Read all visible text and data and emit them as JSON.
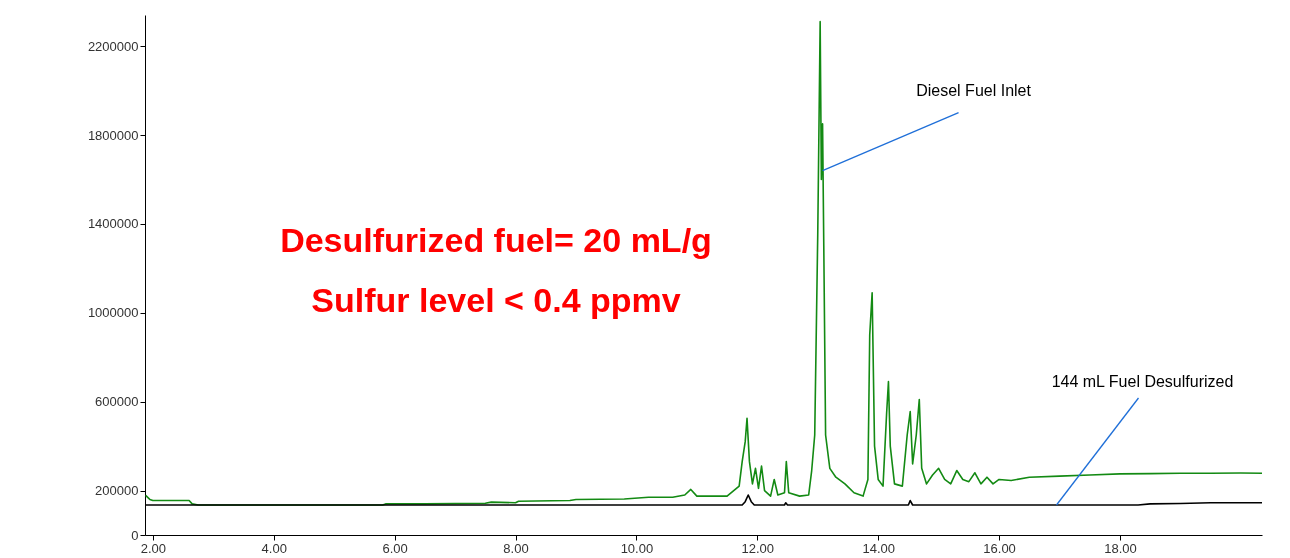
{
  "chart_data": {
    "type": "line",
    "xlim": [
      1.87,
      20.35
    ],
    "xticks": [
      {
        "value": 2,
        "label": "2.00"
      },
      {
        "value": 4,
        "label": "4.00"
      },
      {
        "value": 6,
        "label": "6.00"
      },
      {
        "value": 8,
        "label": "8.00"
      },
      {
        "value": 10,
        "label": "10.00"
      },
      {
        "value": 12,
        "label": "12.00"
      },
      {
        "value": 14,
        "label": "14.00"
      },
      {
        "value": 16,
        "label": "16.00"
      },
      {
        "value": 18,
        "label": "18.00"
      }
    ],
    "ylim": [
      0,
      2340000
    ],
    "yticks": [
      0,
      200000,
      600000,
      1000000,
      1400000,
      1800000,
      2200000
    ],
    "grid": false,
    "marker": "none",
    "line_style": "solid",
    "series": [
      {
        "color": "#138a13",
        "x": [
          1.88,
          1.95,
          2.0,
          2.6,
          2.65,
          2.75,
          5.8,
          5.85,
          6.5,
          7.5,
          7.6,
          8.0,
          8.05,
          8.9,
          9.0,
          9.8,
          10.2,
          10.6,
          10.8,
          10.9,
          11.0,
          11.5,
          11.7,
          11.75,
          11.8,
          11.83,
          11.87,
          11.92,
          11.97,
          12.02,
          12.07,
          12.12,
          12.22,
          12.28,
          12.34,
          12.45,
          12.48,
          12.52,
          12.7,
          12.85,
          12.9,
          12.95,
          13.0,
          13.04,
          13.06,
          13.08,
          13.1,
          13.13,
          13.2,
          13.3,
          13.45,
          13.6,
          13.75,
          13.83,
          13.86,
          13.9,
          13.94,
          14.0,
          14.08,
          14.14,
          14.17,
          14.2,
          14.27,
          14.4,
          14.48,
          14.53,
          14.57,
          14.63,
          14.68,
          14.72,
          14.8,
          14.9,
          15.0,
          15.1,
          15.2,
          15.3,
          15.4,
          15.5,
          15.6,
          15.7,
          15.8,
          15.9,
          16.0,
          16.2,
          16.5,
          17.0,
          17.5,
          18.0,
          18.5,
          19.0,
          19.5,
          20.0,
          20.35
        ],
        "values": [
          178000,
          160000,
          155000,
          155000,
          140000,
          135000,
          135000,
          140000,
          140000,
          143000,
          148000,
          145000,
          152000,
          155000,
          160000,
          162000,
          170000,
          170000,
          180000,
          205000,
          175000,
          175000,
          220000,
          330000,
          420000,
          525000,
          330000,
          230000,
          300000,
          210000,
          310000,
          200000,
          175000,
          250000,
          180000,
          190000,
          330000,
          190000,
          175000,
          180000,
          290000,
          450000,
          1350000,
          2310000,
          1600000,
          1850000,
          1300000,
          450000,
          300000,
          260000,
          230000,
          190000,
          175000,
          250000,
          900000,
          1090000,
          400000,
          250000,
          220000,
          550000,
          690000,
          400000,
          230000,
          220000,
          450000,
          555000,
          320000,
          450000,
          610000,
          300000,
          230000,
          270000,
          300000,
          250000,
          230000,
          290000,
          250000,
          240000,
          280000,
          230000,
          260000,
          230000,
          250000,
          245000,
          260000,
          265000,
          270000,
          275000,
          276000,
          278000,
          278000,
          279000,
          278000
        ]
      },
      {
        "color": "#000000",
        "x": [
          1.88,
          11.75,
          11.8,
          11.85,
          11.9,
          11.95,
          12.45,
          12.47,
          12.5,
          14.5,
          14.53,
          14.57,
          18.3,
          18.5,
          19.0,
          19.5,
          20.35
        ],
        "values": [
          135000,
          135000,
          150000,
          180000,
          150000,
          135000,
          135000,
          145000,
          135000,
          135000,
          155000,
          135000,
          135000,
          140000,
          142000,
          145000,
          145000
        ]
      }
    ],
    "annotations": [
      {
        "text": "Diesel Fuel Inlet",
        "x": 13.08,
        "y": 1640000
      },
      {
        "text": "144 mL Fuel Desulfurized",
        "x": 16.95,
        "y": 135000
      },
      "Desulfurized fuel= 20 mL/g",
      "Sulfur level < 0.4 ppmv"
    ]
  }
}
